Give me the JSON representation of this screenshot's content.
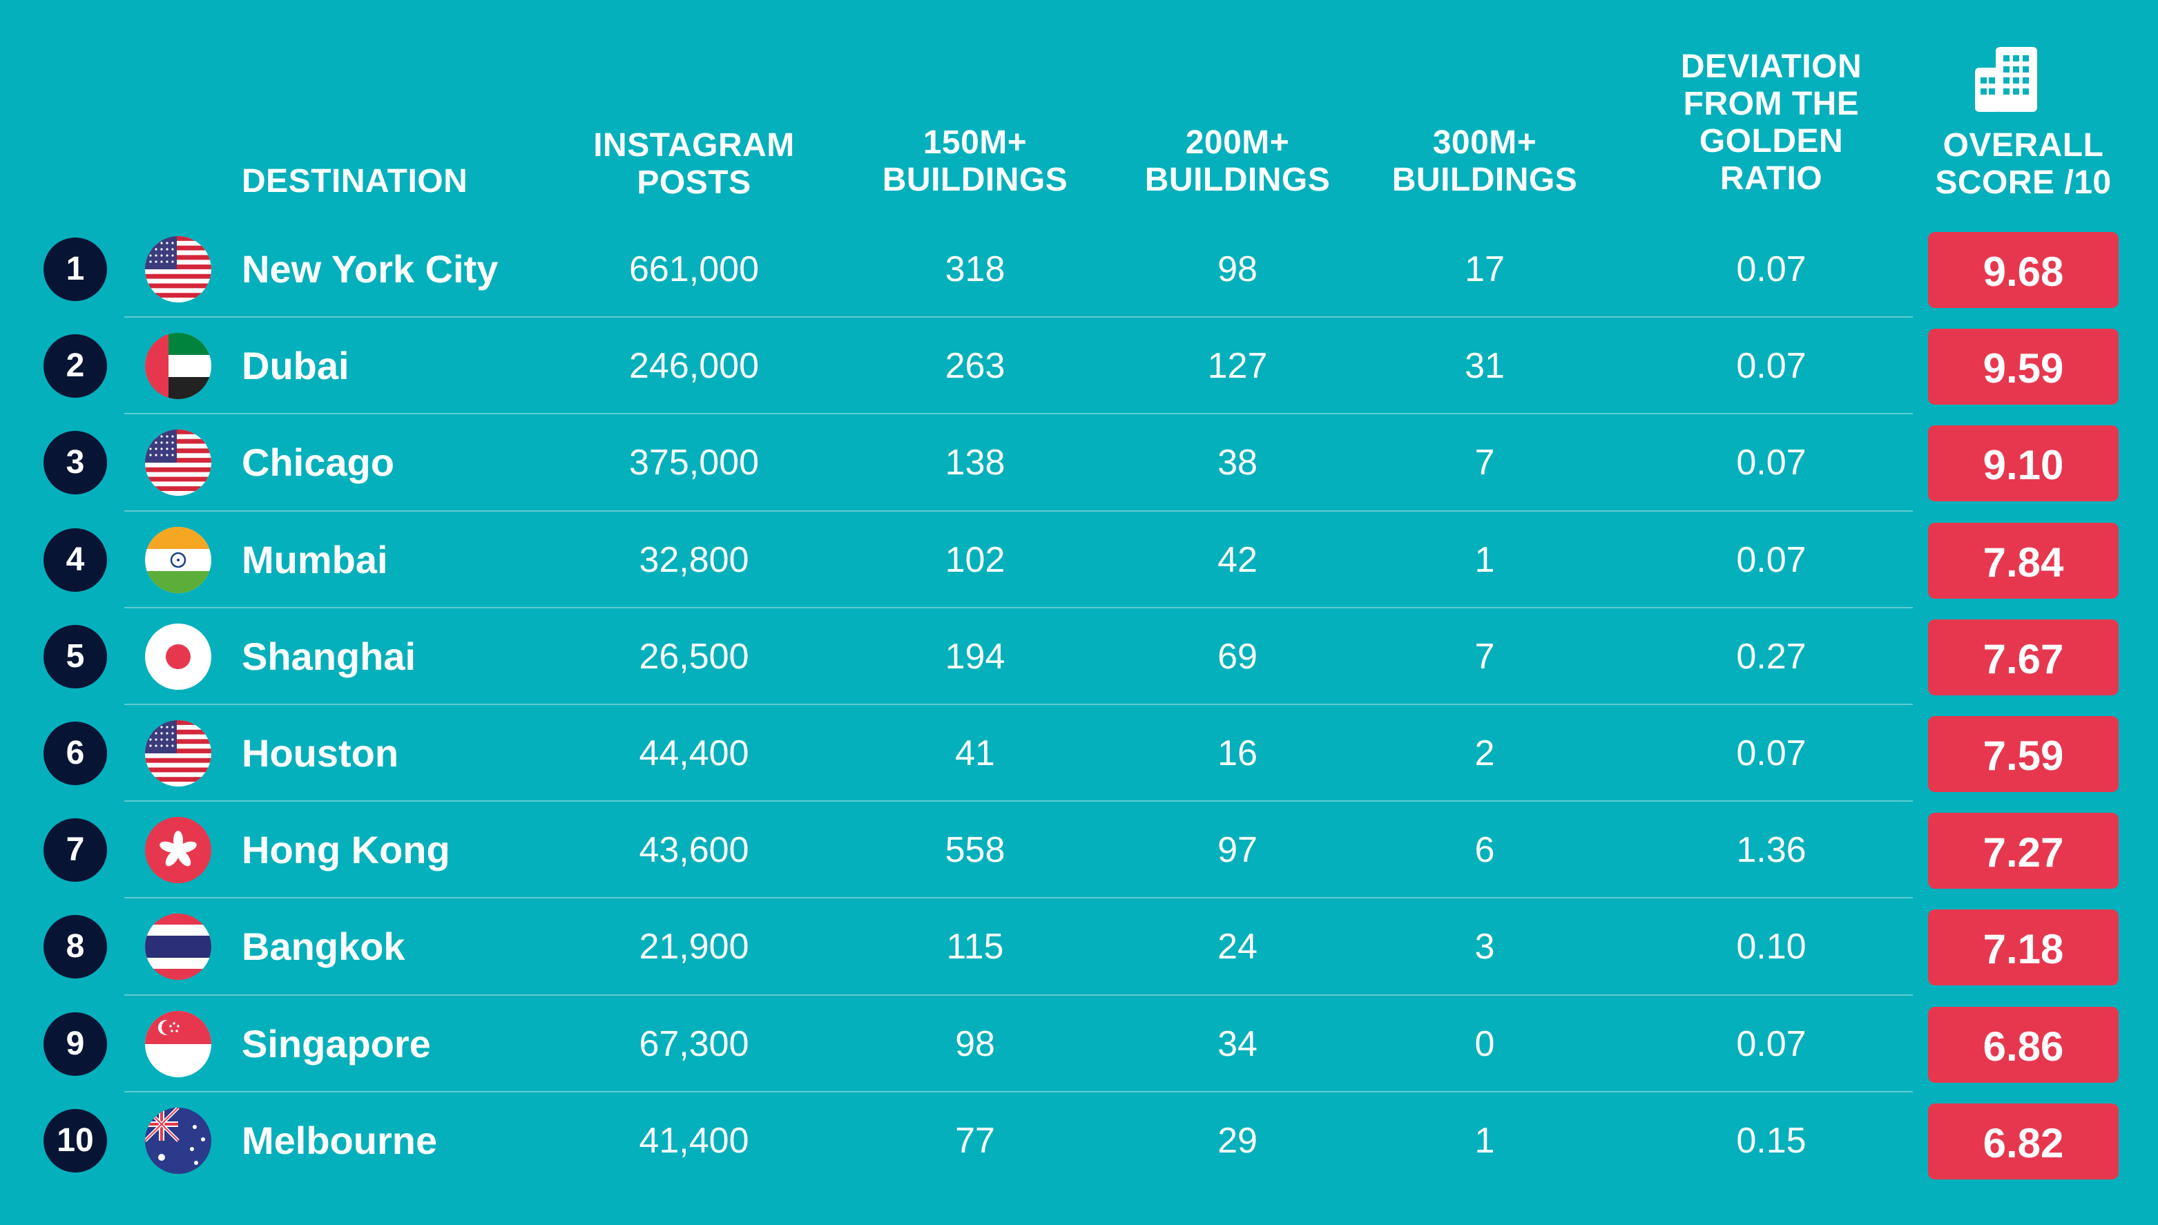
{
  "colors": {
    "background": "#04b0bb",
    "rank_badge": "#081434",
    "score_badge": "#e7374f",
    "divider": "#5fcdd2"
  },
  "headers": {
    "destination": "DESTINATION",
    "instagram": [
      "INSTAGRAM",
      "POSTS"
    ],
    "b150": [
      "150M+",
      "BUILDINGS"
    ],
    "b200": [
      "200M+",
      "BUILDINGS"
    ],
    "b300": [
      "300M+",
      "BUILDINGS"
    ],
    "deviation": [
      "DEVIATION",
      "FROM THE",
      "GOLDEN",
      "RATIO"
    ],
    "score": [
      "OVERALL",
      "SCORE /10"
    ],
    "score_icon": "building-icon"
  },
  "chart_data": {
    "type": "table",
    "columns": [
      "DESTINATION",
      "INSTAGRAM POSTS",
      "150M+ BUILDINGS",
      "200M+ BUILDINGS",
      "300M+ BUILDINGS",
      "DEVIATION FROM THE GOLDEN RATIO",
      "OVERALL SCORE /10"
    ],
    "rows": [
      {
        "rank": "1",
        "flag": "usa-flag-icon",
        "destination": "New York City",
        "instagram": "661,000",
        "b150": "318",
        "b200": "98",
        "b300": "17",
        "deviation": "0.07",
        "score": "9.68"
      },
      {
        "rank": "2",
        "flag": "uae-flag-icon",
        "destination": "Dubai",
        "instagram": "246,000",
        "b150": "263",
        "b200": "127",
        "b300": "31",
        "deviation": "0.07",
        "score": "9.59"
      },
      {
        "rank": "3",
        "flag": "usa-flag-icon",
        "destination": "Chicago",
        "instagram": "375,000",
        "b150": "138",
        "b200": "38",
        "b300": "7",
        "deviation": "0.07",
        "score": "9.10"
      },
      {
        "rank": "4",
        "flag": "india-flag-icon",
        "destination": "Mumbai",
        "instagram": "32,800",
        "b150": "102",
        "b200": "42",
        "b300": "1",
        "deviation": "0.07",
        "score": "7.84"
      },
      {
        "rank": "5",
        "flag": "japan-flag-icon",
        "destination": "Shanghai",
        "instagram": "26,500",
        "b150": "194",
        "b200": "69",
        "b300": "7",
        "deviation": "0.27",
        "score": "7.67"
      },
      {
        "rank": "6",
        "flag": "usa-flag-icon",
        "destination": "Houston",
        "instagram": "44,400",
        "b150": "41",
        "b200": "16",
        "b300": "2",
        "deviation": "0.07",
        "score": "7.59"
      },
      {
        "rank": "7",
        "flag": "hong-kong-flag-icon",
        "destination": "Hong Kong",
        "instagram": "43,600",
        "b150": "558",
        "b200": "97",
        "b300": "6",
        "deviation": "1.36",
        "score": "7.27"
      },
      {
        "rank": "8",
        "flag": "thailand-flag-icon",
        "destination": "Bangkok",
        "instagram": "21,900",
        "b150": "115",
        "b200": "24",
        "b300": "3",
        "deviation": "0.10",
        "score": "7.18"
      },
      {
        "rank": "9",
        "flag": "singapore-flag-icon",
        "destination": "Singapore",
        "instagram": "67,300",
        "b150": "98",
        "b200": "34",
        "b300": "0",
        "deviation": "0.07",
        "score": "6.86"
      },
      {
        "rank": "10",
        "flag": "australia-flag-icon",
        "destination": "Melbourne",
        "instagram": "41,400",
        "b150": "77",
        "b200": "29",
        "b300": "1",
        "deviation": "0.15",
        "score": "6.82"
      }
    ]
  }
}
